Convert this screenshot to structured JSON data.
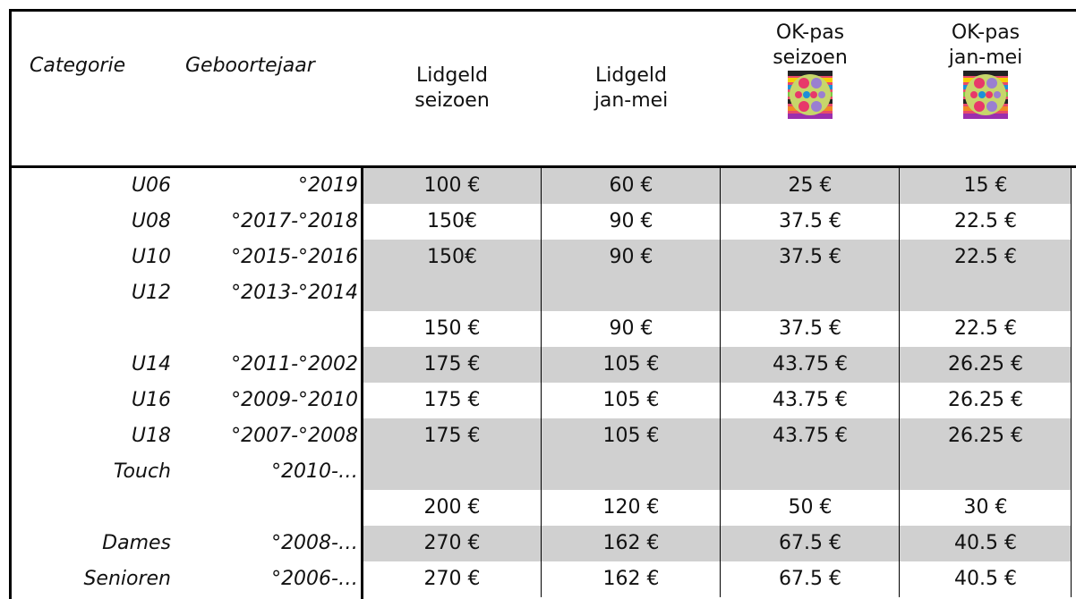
{
  "header": {
    "columns": [
      {
        "lines": [
          "Categorie"
        ]
      },
      {
        "lines": [
          "Geboortejaar"
        ]
      },
      {
        "lines": [
          "Lidgeld",
          "seizoen"
        ]
      },
      {
        "lines": [
          "Lidgeld",
          "jan-mei"
        ]
      },
      {
        "lines": [
          "OK-pas",
          "seizoen"
        ]
      },
      {
        "lines": [
          "OK-pas",
          "jan-mei"
        ]
      }
    ]
  },
  "table": {
    "rows": [
      {
        "category": "U06",
        "year": "°2019",
        "shaded": true,
        "prices": [
          "100 €",
          "60 €",
          "25 €",
          "15 €"
        ]
      },
      {
        "category": "U08",
        "year": "°2017-°2018",
        "shaded": false,
        "prices": [
          "150€",
          "90 €",
          "37.5 €",
          "22.5 €"
        ]
      },
      {
        "category": "U10",
        "year": "°2015-°2016",
        "shaded": true,
        "prices": [
          "150€",
          "90 €",
          "37.5 €",
          "22.5 €"
        ]
      },
      {
        "category": "U12",
        "year": "°2013-°2014",
        "shaded": true
      },
      {
        "shaded": false,
        "prices": [
          "150 €",
          "90 €",
          "37.5 €",
          "22.5 €"
        ]
      },
      {
        "category": "U14",
        "year": "°2011-°2002",
        "shaded": true,
        "prices": [
          "175 €",
          "105 €",
          "43.75 €",
          "26.25 €"
        ]
      },
      {
        "category": "U16",
        "year": "°2009-°2010",
        "shaded": false,
        "prices": [
          "175 €",
          "105 €",
          "43.75 €",
          "26.25 €"
        ]
      },
      {
        "category": "U18",
        "year": "°2007-°2008",
        "shaded": true,
        "prices": [
          "175 €",
          "105 €",
          "43.75 €",
          "26.25 €"
        ]
      },
      {
        "category": "Touch",
        "year": "°2010-…",
        "shaded": true
      },
      {
        "shaded": false,
        "prices": [
          "200 €",
          "120 €",
          "50 €",
          "30 €"
        ]
      },
      {
        "category": "Dames",
        "year": "°2008-…",
        "shaded": true,
        "prices": [
          "270 €",
          "162 €",
          "67.5 €",
          "40.5 €"
        ]
      },
      {
        "category": "Senioren",
        "year": "°2006-…",
        "shaded": false,
        "prices": [
          "270 €",
          "162 €",
          "67.5 €",
          "40.5 €"
        ]
      }
    ]
  }
}
